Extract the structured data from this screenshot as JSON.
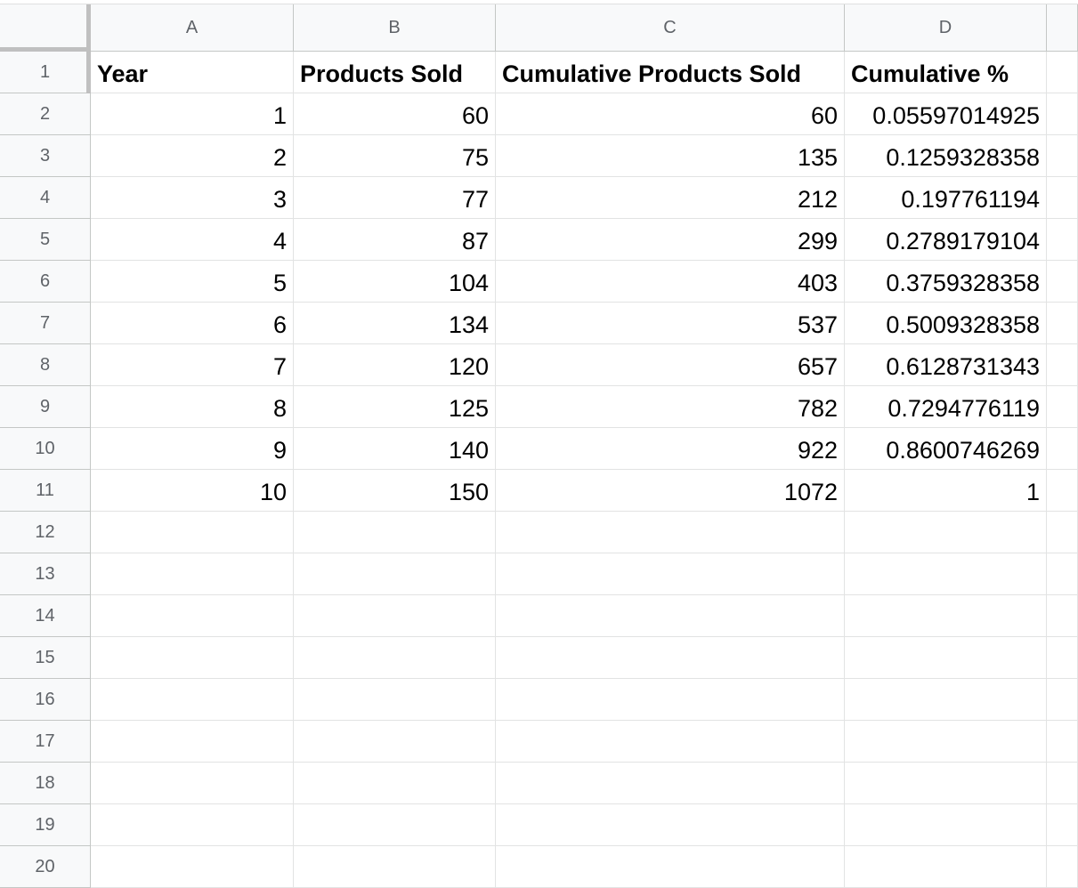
{
  "columns": [
    "A",
    "B",
    "C",
    "D"
  ],
  "row_numbers": [
    1,
    2,
    3,
    4,
    5,
    6,
    7,
    8,
    9,
    10,
    11,
    12,
    13,
    14,
    15,
    16,
    17,
    18,
    19,
    20
  ],
  "table": {
    "header": [
      "Year",
      "Products Sold",
      "Cumulative Products Sold",
      "Cumulative %"
    ],
    "rows": [
      [
        1,
        60,
        60,
        0.05597014925
      ],
      [
        2,
        75,
        135,
        0.1259328358
      ],
      [
        3,
        77,
        212,
        0.197761194
      ],
      [
        4,
        87,
        299,
        0.2789179104
      ],
      [
        5,
        104,
        403,
        0.3759328358
      ],
      [
        6,
        134,
        537,
        0.5009328358
      ],
      [
        7,
        120,
        657,
        0.6128731343
      ],
      [
        8,
        125,
        782,
        0.7294776119
      ],
      [
        9,
        140,
        922,
        0.8600746269
      ],
      [
        10,
        150,
        1072,
        1
      ]
    ]
  }
}
